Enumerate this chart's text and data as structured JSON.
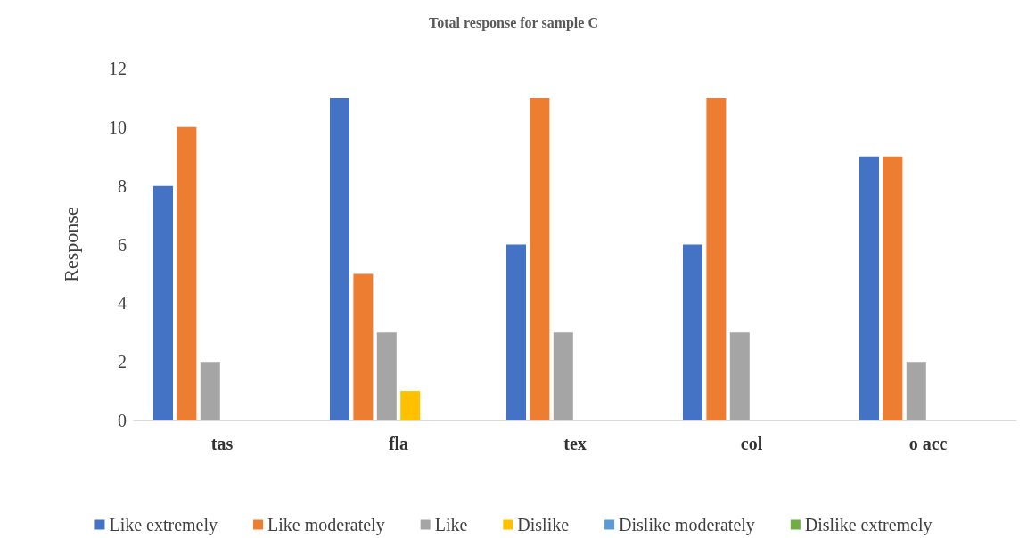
{
  "chart_data": {
    "type": "bar",
    "title": "Total response for sample C",
    "ylabel": "Response",
    "categories": [
      "tas",
      "fla",
      "tex",
      "col",
      "o acc"
    ],
    "series": [
      {
        "name": "Like extremely",
        "color": "#4472c4",
        "values": [
          8,
          11,
          6,
          6,
          9
        ]
      },
      {
        "name": "Like moderately",
        "color": "#ed7d31",
        "values": [
          10,
          5,
          11,
          11,
          9
        ]
      },
      {
        "name": "Like",
        "color": "#a5a5a5",
        "values": [
          2,
          3,
          3,
          3,
          2
        ]
      },
      {
        "name": "Dislike",
        "color": "#ffc000",
        "values": [
          0,
          1,
          0,
          0,
          0
        ]
      },
      {
        "name": "Dislike moderately",
        "color": "#5b9bd5",
        "values": [
          0,
          0,
          0,
          0,
          0
        ]
      },
      {
        "name": "Dislike extremely",
        "color": "#70ad47",
        "values": [
          0,
          0,
          0,
          0,
          0
        ]
      }
    ],
    "ylim": [
      0,
      12
    ],
    "yticks": [
      0,
      2,
      4,
      6,
      8,
      10,
      12
    ],
    "grid": false,
    "legend": "bottom"
  }
}
